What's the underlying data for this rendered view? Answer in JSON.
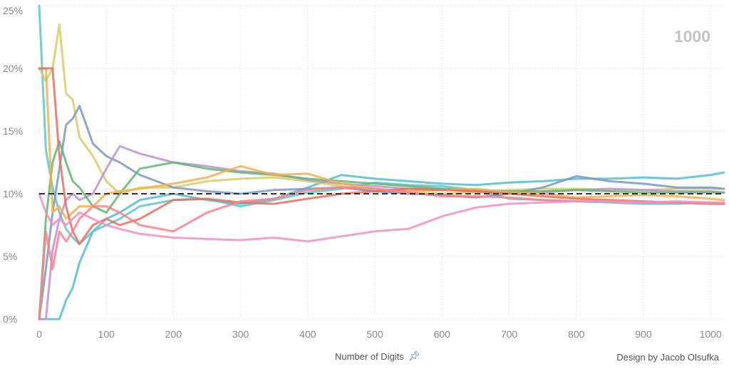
{
  "counter": "1000",
  "footer": {
    "xlabel": "Number of Digits",
    "pin_icon": "pin-icon",
    "credit": "Design by Jacob Olsufka"
  },
  "colors": {
    "grid": "#d6d6d6",
    "reference": "#333333",
    "axis_text": "#8a8a8a"
  },
  "chart_data": {
    "type": "line",
    "title": "",
    "xlabel": "Number of Digits",
    "ylabel": "",
    "xlim": [
      0,
      1020
    ],
    "ylim": [
      0,
      25
    ],
    "x_ticks": [
      0,
      100,
      200,
      300,
      400,
      500,
      600,
      700,
      800,
      900,
      1000
    ],
    "y_ticks": [
      0,
      5,
      10,
      15,
      20,
      25
    ],
    "y_tick_labels": [
      "0%",
      "5%",
      "10%",
      "15%",
      "20%",
      "25%"
    ],
    "grid": true,
    "reference_line": {
      "y": 10,
      "style": "dashed"
    },
    "x": [
      0,
      10,
      20,
      30,
      40,
      50,
      60,
      80,
      100,
      120,
      150,
      200,
      250,
      300,
      350,
      400,
      450,
      500,
      550,
      600,
      650,
      700,
      750,
      800,
      850,
      900,
      950,
      1000,
      1020
    ],
    "series": [
      {
        "color": "#5cc8c8",
        "values": [
          25,
          13.5,
          10.5,
          8.5,
          7.2,
          6.5,
          6,
          7,
          7.5,
          8,
          9,
          9.5,
          9.6,
          9,
          9.5,
          10.1,
          10.4,
          10.9,
          10.7,
          10.6,
          10.3,
          9.6,
          9.5,
          9.4,
          9.3,
          9.2,
          9.2,
          9.3,
          9.2
        ]
      },
      {
        "color": "#4fbfcc",
        "values": [
          0,
          0,
          0,
          0,
          1.5,
          2.5,
          4.5,
          7,
          8,
          8.5,
          9.5,
          10,
          9.5,
          9.2,
          9.6,
          10.5,
          11.5,
          11.2,
          11,
          10.8,
          10.7,
          10.9,
          11,
          11.2,
          11.2,
          11.3,
          11.2,
          11.5,
          11.7
        ]
      },
      {
        "color": "#d8cc62",
        "values": [
          20,
          19,
          20,
          23.5,
          18,
          17.5,
          14.5,
          13,
          11,
          10,
          10.5,
          10.5,
          11,
          11.2,
          11.3,
          11,
          10.6,
          10.2,
          10.1,
          10,
          10.1,
          10.3,
          10.4,
          10.4,
          10.3,
          10.3,
          10.4,
          10.4,
          10.4
        ]
      },
      {
        "color": "#7b98c4",
        "values": [
          0,
          4,
          8.5,
          12,
          15.5,
          16,
          17,
          14,
          13,
          12.5,
          11.5,
          10.5,
          10.2,
          10,
          10.3,
          10.4,
          10.5,
          10.2,
          10,
          9.9,
          9.7,
          10,
          10.5,
          11.4,
          11,
          10.8,
          10.5,
          10.5,
          10.4
        ]
      },
      {
        "color": "#bc90d6",
        "values": [
          0,
          0,
          5.5,
          8,
          9.5,
          10,
          9.5,
          10,
          12,
          13.8,
          13.2,
          12.5,
          12.2,
          11.8,
          11.6,
          11.1,
          10.8,
          10.6,
          10.4,
          10.4,
          10.2,
          10.1,
          10.1,
          10.3,
          10.4,
          10.3,
          10.2,
          10.2,
          10.1
        ]
      },
      {
        "color": "#5fb870",
        "values": [
          0,
          8,
          12.5,
          14.2,
          12.5,
          11,
          10.5,
          9,
          8.5,
          10,
          12,
          12.5,
          12,
          11.7,
          11.5,
          11.2,
          11,
          10.8,
          10.6,
          10.4,
          10.3,
          10.2,
          10.2,
          10.3,
          10.2,
          10.1,
          10.1,
          10.1,
          10.1
        ]
      },
      {
        "color": "#f5b04a",
        "values": [
          20,
          20,
          8.5,
          9,
          8,
          8.5,
          9,
          9,
          10,
          10.2,
          10.4,
          10.8,
          11.3,
          12.2,
          11.5,
          11.6,
          10.8,
          10.4,
          10.2,
          10.3,
          10.4,
          10.1,
          10,
          9.7,
          9.8,
          9.9,
          9.8,
          9.6,
          9.5
        ]
      },
      {
        "color": "#ea6f5e",
        "values": [
          20,
          20,
          20,
          13,
          9,
          7,
          6,
          7.5,
          8,
          7.5,
          8,
          9.5,
          9.6,
          9.3,
          9.2,
          9.6,
          10,
          10.2,
          10.4,
          10.3,
          10.2,
          10,
          9.8,
          9.6,
          9.5,
          9.4,
          9.3,
          9.2,
          9.2
        ]
      },
      {
        "color": "#ff7f8a",
        "values": [
          0,
          7,
          4,
          7,
          6.2,
          7,
          8,
          9,
          9,
          8.5,
          7.5,
          7,
          8.5,
          9.4,
          9.6,
          10.3,
          10.5,
          10.4,
          10.1,
          9.8,
          9.8,
          9.7,
          9.5,
          9.4,
          9.4,
          9.3,
          9.3,
          9.2,
          9.2
        ]
      },
      {
        "color": "#f28fc0",
        "values": [
          10,
          8.5,
          7.5,
          8,
          7.5,
          8,
          8.5,
          8,
          7.5,
          7.2,
          6.8,
          6.5,
          6.4,
          6.3,
          6.5,
          6.2,
          6.6,
          7,
          7.2,
          8.2,
          8.9,
          9.2,
          9.3,
          9.4,
          9.4,
          9.3,
          9.4,
          9.3,
          9.3
        ]
      }
    ]
  }
}
